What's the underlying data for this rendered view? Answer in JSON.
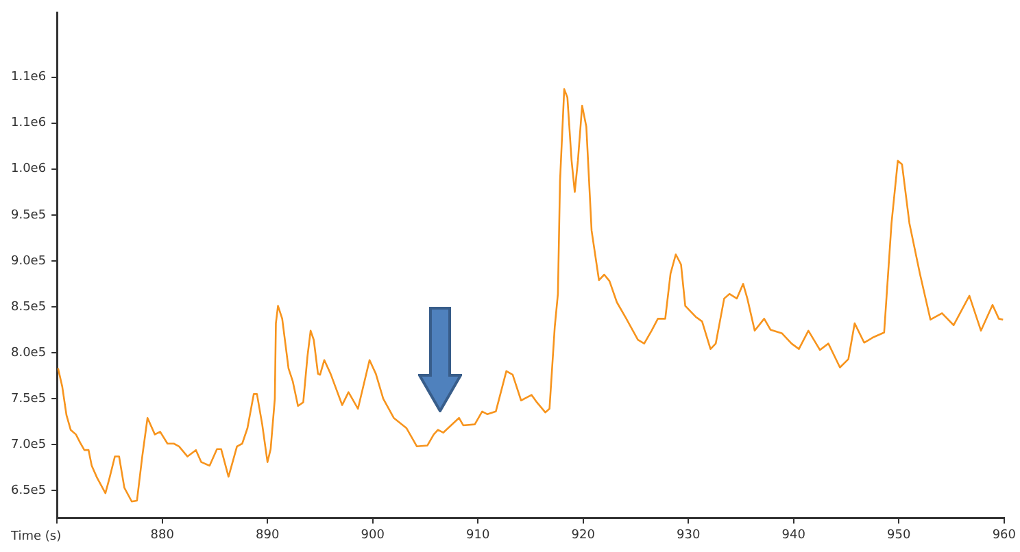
{
  "chart_data": {
    "type": "line",
    "xlabel": "Time (s)",
    "xlim": [
      870,
      960
    ],
    "xticks": [
      {
        "value": 870,
        "label": null
      },
      880,
      890,
      900,
      910,
      920,
      930,
      940,
      950,
      960
    ],
    "ylim": [
      620000,
      1170000
    ],
    "yticks": [
      {
        "value": 650000,
        "label": "6.5e5"
      },
      {
        "value": 700000,
        "label": "7.0e5"
      },
      {
        "value": 750000,
        "label": "7.5e5"
      },
      {
        "value": 800000,
        "label": "8.0e5"
      },
      {
        "value": 850000,
        "label": "8.5e5"
      },
      {
        "value": 900000,
        "label": "9.0e5"
      },
      {
        "value": 950000,
        "label": "9.5e5"
      },
      {
        "value": 1000000,
        "label": "1.0e6"
      },
      {
        "value": 1050000,
        "label": "1.1e6"
      },
      {
        "value": 1100000,
        "label": "1.1e6"
      }
    ],
    "grid": false,
    "legend": false,
    "marker": "none",
    "line_style": "solid",
    "x": [
      870.1,
      870.5,
      870.9,
      871.3,
      871.8,
      872.2,
      872.6,
      873.0,
      873.3,
      873.8,
      874.6,
      875.0,
      875.5,
      875.9,
      876.4,
      877.1,
      877.6,
      878.1,
      878.6,
      879.3,
      879.8,
      880.5,
      881.1,
      881.6,
      882.4,
      883.2,
      883.7,
      884.5,
      885.2,
      885.6,
      886.3,
      887.1,
      887.6,
      888.1,
      888.7,
      889.0,
      889.5,
      890.0,
      890.3,
      890.7,
      890.8,
      891.0,
      891.4,
      892.0,
      892.4,
      892.9,
      893.4,
      893.8,
      894.1,
      894.4,
      894.8,
      895.0,
      895.4,
      896.0,
      897.1,
      897.7,
      898.6,
      899.7,
      900.3,
      901.0,
      902.0,
      903.2,
      904.2,
      905.2,
      905.8,
      906.2,
      906.7,
      908.2,
      908.6,
      909.7,
      910.4,
      910.9,
      911.7,
      912.7,
      913.3,
      914.1,
      915.1,
      915.6,
      916.4,
      916.8,
      917.3,
      917.6,
      917.8,
      918.2,
      918.5,
      918.9,
      919.2,
      919.5,
      919.9,
      920.3,
      920.8,
      921.5,
      922.0,
      922.5,
      923.2,
      924.1,
      925.2,
      925.8,
      926.5,
      927.1,
      927.8,
      928.3,
      928.8,
      929.3,
      929.7,
      930.7,
      931.3,
      932.1,
      932.6,
      933.4,
      933.9,
      934.6,
      935.2,
      935.6,
      936.3,
      937.2,
      937.8,
      938.9,
      939.8,
      940.5,
      941.4,
      942.5,
      943.3,
      944.4,
      945.2,
      945.8,
      946.7,
      947.6,
      948.6,
      949.3,
      949.9,
      950.3,
      951.0,
      952.0,
      953.0,
      954.1,
      955.2,
      956.7,
      957.8,
      958.9,
      959.5,
      959.9
    ],
    "series": [
      {
        "color": "#f7941d",
        "values": [
          783000,
          763000,
          732000,
          716000,
          711000,
          702000,
          694000,
          694000,
          677000,
          664000,
          647000,
          664000,
          687000,
          687000,
          653000,
          638000,
          639000,
          687000,
          729000,
          711000,
          714000,
          701000,
          701000,
          698000,
          687000,
          694000,
          681000,
          677000,
          695000,
          695000,
          665000,
          698000,
          701000,
          718000,
          755000,
          755000,
          722000,
          681000,
          695000,
          750000,
          832000,
          851000,
          837000,
          783000,
          769000,
          742000,
          746000,
          796000,
          824000,
          814000,
          777000,
          776000,
          792000,
          777000,
          743000,
          757000,
          739000,
          792000,
          777000,
          750000,
          729000,
          718000,
          698000,
          699000,
          711000,
          716000,
          713000,
          729000,
          721000,
          722000,
          736000,
          733000,
          736000,
          780000,
          776000,
          748000,
          754000,
          746000,
          735000,
          739000,
          828000,
          864000,
          987000,
          1087000,
          1078000,
          1009000,
          975000,
          1009000,
          1069000,
          1046000,
          933000,
          879000,
          885000,
          878000,
          855000,
          837000,
          814000,
          810000,
          824000,
          837000,
          837000,
          886000,
          907000,
          896000,
          851000,
          839000,
          834000,
          804000,
          810000,
          859000,
          864000,
          859000,
          875000,
          859000,
          824000,
          837000,
          825000,
          821000,
          810000,
          804000,
          824000,
          803000,
          810000,
          784000,
          793000,
          832000,
          811000,
          817000,
          822000,
          941000,
          1009000,
          1005000,
          941000,
          886000,
          836000,
          843000,
          830000,
          862000,
          824000,
          852000,
          837000,
          836000
        ]
      }
    ]
  }
}
